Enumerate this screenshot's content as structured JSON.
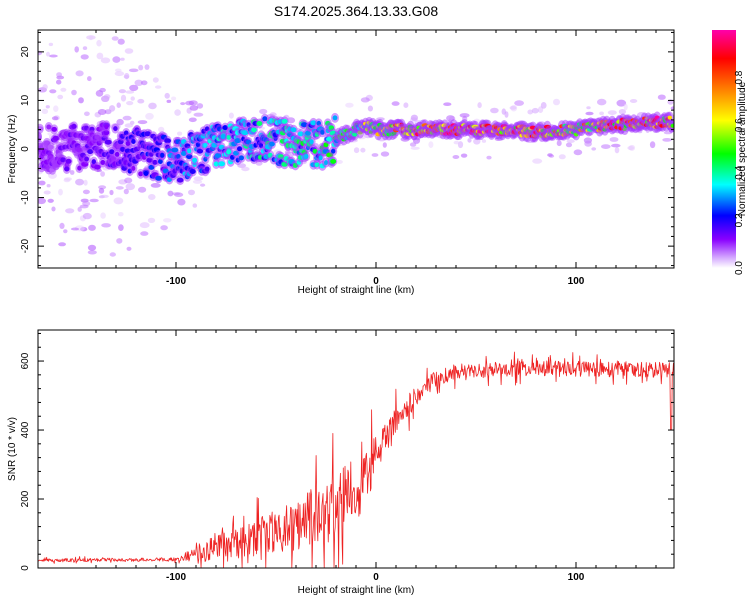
{
  "title": "S174.2025.364.13.33.G08",
  "chart_data": [
    {
      "type": "heatmap",
      "xlabel": "Height of straight line (km)",
      "ylabel": "Frequency (Hz)",
      "xlim": [
        -169,
        149
      ],
      "ylim": [
        -24.5,
        24.5
      ],
      "xticks": [
        -100,
        0,
        100
      ],
      "yticks": [
        -20,
        -10,
        0,
        10,
        20
      ],
      "colorbar": {
        "label": "Normalized spectral amplitude",
        "range": [
          0,
          1
        ],
        "ticks": [
          0.0,
          0.2,
          0.4,
          0.6,
          0.8
        ],
        "tick_labels": [
          "0.0",
          "0.2",
          "0.4",
          "0.6",
          "0.8"
        ],
        "colors": [
          "#ffffff",
          "#8a00ff",
          "#0000ff",
          "#00ffff",
          "#00ff00",
          "#ffff00",
          "#ff8000",
          "#ff0000",
          "#ff00aa"
        ]
      },
      "ridge": {
        "x": [
          -169,
          -150,
          -130,
          -110,
          -100,
          -80,
          -60,
          -40,
          -25,
          -10,
          -5,
          0,
          10,
          20,
          40,
          60,
          80,
          100,
          120,
          140,
          149
        ],
        "freq": [
          0.0,
          0.5,
          0.5,
          -1.5,
          -2.5,
          0.5,
          2.0,
          1.0,
          1.0,
          4.0,
          5.0,
          4.0,
          4.0,
          4.0,
          4.0,
          4.0,
          3.5,
          4.0,
          5.0,
          5.5,
          5.5
        ],
        "amplitude": [
          0.12,
          0.15,
          0.18,
          0.25,
          0.3,
          0.35,
          0.4,
          0.42,
          0.45,
          0.55,
          0.6,
          0.65,
          0.75,
          0.85,
          0.95,
          0.9,
          0.85,
          0.7,
          0.85,
          0.9,
          0.8
        ]
      }
    },
    {
      "type": "line",
      "xlabel": "Height of straight line (km)",
      "ylabel": "SNR (10 * v/v)",
      "xlim": [
        -169,
        149
      ],
      "ylim": [
        0,
        690
      ],
      "xticks": [
        -100,
        0,
        100
      ],
      "yticks": [
        0,
        200,
        400,
        600
      ],
      "color": "#ee2222",
      "trend": {
        "x": [
          -169,
          -100,
          -90,
          -70,
          -50,
          -30,
          -20,
          -10,
          0,
          10,
          20,
          30,
          40,
          60,
          80,
          100,
          120,
          140,
          149
        ],
        "mean": [
          22,
          25,
          45,
          70,
          100,
          150,
          180,
          230,
          320,
          420,
          500,
          550,
          570,
          575,
          580,
          575,
          578,
          575,
          575
        ],
        "spread": [
          10,
          10,
          50,
          90,
          130,
          180,
          200,
          200,
          130,
          90,
          60,
          45,
          45,
          45,
          45,
          45,
          45,
          45,
          45
        ]
      },
      "dip": {
        "x": 147.5,
        "value": 400
      }
    }
  ]
}
